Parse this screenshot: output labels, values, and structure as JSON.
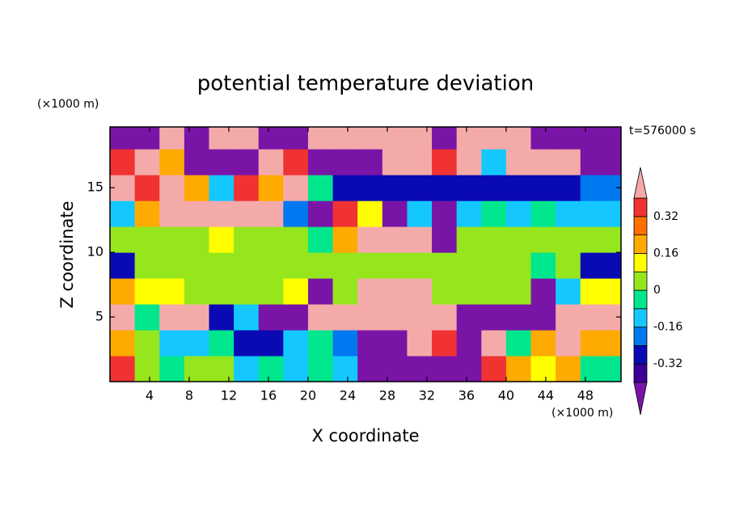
{
  "chart_data": {
    "type": "contour",
    "title": "potential temperature deviation",
    "subtitle": "t=576000 s",
    "xlabel": "X coordinate",
    "ylabel": "Z coordinate",
    "xunit": "(×1000 m)",
    "yunit": "(×1000 m)",
    "xlim": [
      0,
      51.6
    ],
    "ylim": [
      0,
      19.7
    ],
    "xticks": [
      4,
      8,
      12,
      16,
      20,
      24,
      28,
      32,
      36,
      40,
      44,
      48
    ],
    "yticks": [
      5,
      10,
      15
    ],
    "x": [
      1.25,
      3.75,
      6.25,
      8.75,
      11.25,
      13.75,
      16.25,
      18.75,
      21.25,
      23.75,
      26.25,
      28.75,
      31.25,
      33.75,
      36.25,
      38.75,
      41.25,
      43.75,
      46.25,
      48.75
    ],
    "y": [
      1,
      3,
      5,
      7,
      9,
      11,
      13,
      15,
      17,
      19
    ],
    "z": [
      [
        0.36,
        0.04,
        -0.04,
        0.04,
        0.04,
        -0.12,
        -0.04,
        -0.12,
        -0.04,
        -0.12,
        -0.5,
        -0.5,
        -0.5,
        -0.5,
        -0.5,
        0.36,
        0.2,
        0.12,
        0.2,
        -0.04
      ],
      [
        0.2,
        0.04,
        -0.12,
        -0.12,
        -0.04,
        -0.28,
        -0.28,
        -0.12,
        -0.04,
        -0.2,
        -0.5,
        -0.5,
        0.5,
        0.36,
        -0.5,
        0.5,
        -0.04,
        0.2,
        0.5,
        0.2
      ],
      [
        0.5,
        -0.04,
        0.5,
        0.5,
        -0.28,
        -0.12,
        -0.5,
        -0.5,
        0.5,
        0.5,
        0.5,
        0.5,
        0.5,
        0.5,
        -0.5,
        -0.5,
        -0.5,
        -0.5,
        0.5,
        0.5
      ],
      [
        0.2,
        0.12,
        0.12,
        0.04,
        0.04,
        0.04,
        0.04,
        0.12,
        -0.5,
        0.04,
        0.5,
        0.5,
        0.5,
        0.04,
        0.04,
        0.04,
        0.04,
        -0.5,
        -0.12,
        0.12
      ],
      [
        -0.28,
        0.04,
        0.04,
        0.04,
        0.04,
        0.04,
        0.04,
        0.04,
        0.04,
        0.04,
        0.04,
        0.04,
        0.04,
        0.04,
        0.04,
        0.04,
        0.04,
        -0.04,
        0.04,
        -0.28
      ],
      [
        0.04,
        0.04,
        0.04,
        0.04,
        0.12,
        0.04,
        0.04,
        0.04,
        -0.04,
        0.2,
        0.5,
        0.5,
        0.5,
        -0.5,
        0.04,
        0.04,
        0.04,
        0.04,
        0.04,
        0.04
      ],
      [
        -0.12,
        0.2,
        0.5,
        0.5,
        0.5,
        0.5,
        0.5,
        -0.2,
        -0.5,
        0.36,
        0.12,
        -0.5,
        -0.12,
        -0.5,
        -0.12,
        -0.04,
        -0.12,
        -0.04,
        -0.12,
        -0.12
      ],
      [
        0.5,
        0.36,
        0.5,
        0.2,
        -0.12,
        0.36,
        0.2,
        0.5,
        -0.04,
        -0.28,
        -0.28,
        -0.28,
        -0.28,
        -0.28,
        -0.28,
        -0.28,
        -0.28,
        -0.28,
        -0.28,
        -0.2
      ],
      [
        0.36,
        0.5,
        0.2,
        -0.5,
        -0.5,
        -0.5,
        0.5,
        0.36,
        -0.5,
        -0.5,
        -0.5,
        0.5,
        0.5,
        0.36,
        0.5,
        -0.12,
        0.5,
        0.5,
        0.5,
        -0.5
      ],
      [
        -0.5,
        -0.5,
        0.5,
        -0.5,
        0.5,
        0.5,
        -0.5,
        -0.5,
        0.5,
        0.5,
        0.5,
        0.5,
        0.5,
        -0.5,
        0.5,
        0.5,
        0.5,
        -0.5,
        -0.5,
        -0.5
      ]
    ],
    "levels": [
      -0.4,
      -0.32,
      -0.24,
      -0.16,
      -0.08,
      0,
      0.08,
      0.16,
      0.24,
      0.32,
      0.4
    ],
    "colors": [
      "#7a14a6",
      "#3c0096",
      "#0a0ab4",
      "#0078f0",
      "#14c8ff",
      "#00e68c",
      "#96e61e",
      "#ffff00",
      "#ffaa00",
      "#ff7000",
      "#f03232",
      "#f5aaaa"
    ],
    "colorbar_ticks": [
      -0.32,
      -0.16,
      0,
      0.16,
      0.32
    ]
  }
}
